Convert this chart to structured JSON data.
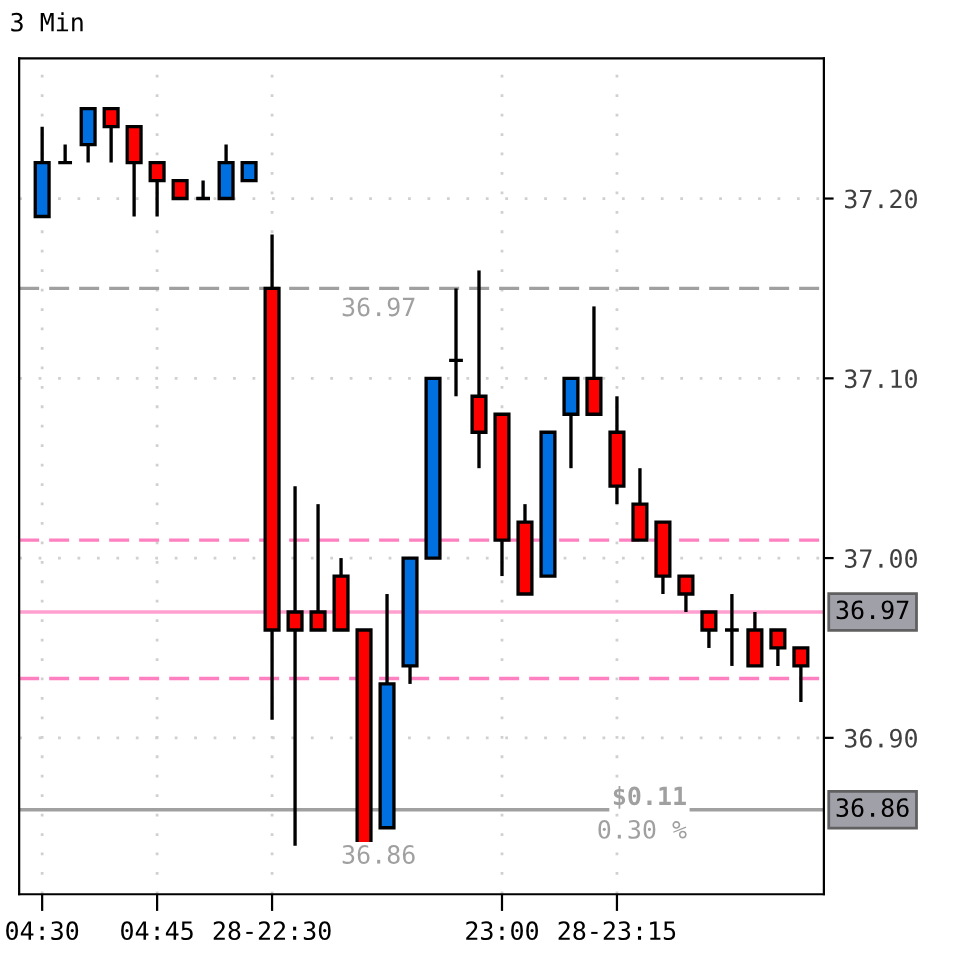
{
  "chart_data": {
    "type": "candlestick",
    "title": "3 Min",
    "categories": [
      "04:30",
      null,
      null,
      null,
      null,
      "04:45",
      null,
      null,
      null,
      null,
      "28-22:30",
      null,
      null,
      null,
      null,
      null,
      null,
      null,
      null,
      null,
      "23:00",
      null,
      null,
      null,
      null,
      "28-23:15",
      null,
      null,
      null,
      null,
      null,
      null,
      null,
      null
    ],
    "ohlc": [
      [
        37.19,
        37.24,
        37.19,
        37.22
      ],
      [
        37.22,
        37.23,
        37.22,
        37.22
      ],
      [
        37.23,
        37.25,
        37.22,
        37.25
      ],
      [
        37.25,
        37.25,
        37.22,
        37.24
      ],
      [
        37.24,
        37.24,
        37.19,
        37.22
      ],
      [
        37.22,
        37.22,
        37.19,
        37.21
      ],
      [
        37.21,
        37.21,
        37.2,
        37.2
      ],
      [
        37.2,
        37.21,
        37.2,
        37.2
      ],
      [
        37.2,
        37.23,
        37.2,
        37.22
      ],
      [
        37.21,
        37.22,
        37.21,
        37.22
      ],
      [
        37.15,
        37.18,
        36.91,
        36.96
      ],
      [
        36.97,
        37.04,
        36.84,
        36.96
      ],
      [
        36.97,
        37.03,
        36.96,
        36.96
      ],
      [
        36.99,
        37.0,
        36.96,
        36.96
      ],
      [
        36.96,
        36.96,
        36.84,
        36.84
      ],
      [
        36.85,
        36.98,
        36.85,
        36.93
      ],
      [
        36.94,
        37.0,
        36.93,
        37.0
      ],
      [
        37.0,
        37.1,
        37.0,
        37.1
      ],
      [
        37.11,
        37.15,
        37.09,
        37.11
      ],
      [
        37.09,
        37.16,
        37.05,
        37.07
      ],
      [
        37.08,
        37.08,
        36.99,
        37.01
      ],
      [
        37.02,
        37.03,
        36.98,
        36.98
      ],
      [
        36.99,
        37.07,
        36.99,
        37.07
      ],
      [
        37.08,
        37.1,
        37.05,
        37.1
      ],
      [
        37.1,
        37.14,
        37.08,
        37.08
      ],
      [
        37.07,
        37.09,
        37.03,
        37.04
      ],
      [
        37.03,
        37.05,
        37.01,
        37.01
      ],
      [
        37.02,
        37.02,
        36.98,
        36.99
      ],
      [
        36.99,
        36.99,
        36.97,
        36.98
      ],
      [
        36.97,
        36.97,
        36.95,
        36.96
      ],
      [
        36.96,
        36.98,
        36.94,
        36.96
      ],
      [
        36.96,
        36.97,
        36.94,
        36.94
      ],
      [
        36.96,
        36.96,
        36.94,
        36.95
      ],
      [
        36.95,
        36.95,
        36.92,
        36.94
      ]
    ],
    "colors": [
      "#0070e0",
      "#000000",
      "#0070e0",
      "#ff0000",
      "#ff0000",
      "#ff0000",
      "#ff0000",
      "#000000",
      "#0070e0",
      "#0070e0",
      "#ff0000",
      "#ff0000",
      "#ff0000",
      "#ff0000",
      "#ff0000",
      "#0070e0",
      "#0070e0",
      "#0070e0",
      "#000000",
      "#ff0000",
      "#ff0000",
      "#ff0000",
      "#0070e0",
      "#0070e0",
      "#ff0000",
      "#ff0000",
      "#ff0000",
      "#ff0000",
      "#ff0000",
      "#ff0000",
      "#000000",
      "#ff0000",
      "#ff0000",
      "#ff0000"
    ],
    "ylim": [
      36.813,
      37.278
    ],
    "yticks": [
      {
        "value": 36.9,
        "label": "36.90"
      },
      {
        "value": 37.0,
        "label": "37.00"
      },
      {
        "value": 37.1,
        "label": "37.10"
      },
      {
        "value": 37.2,
        "label": "37.20"
      }
    ],
    "ref_lines": [
      {
        "axis": "y",
        "value": 37.15,
        "color": "#a0a0a0",
        "line_style": "dashed"
      },
      {
        "axis": "y",
        "value": 37.01,
        "color": "#ff80c0",
        "line_style": "dashed"
      },
      {
        "axis": "y",
        "value": 36.97,
        "label": "36.97",
        "color": "#ffa0d0",
        "line_style": "solid"
      },
      {
        "axis": "y",
        "value": 36.933,
        "color": "#ff80c0",
        "line_style": "dashed"
      },
      {
        "axis": "y",
        "value": 36.86,
        "label": "36.86",
        "color": "#a0a0a0",
        "line_style": "solid"
      }
    ],
    "annotations": [
      "36.97",
      "36.86",
      "$0.11",
      "0.30 %"
    ],
    "grid": true,
    "legend": false
  }
}
